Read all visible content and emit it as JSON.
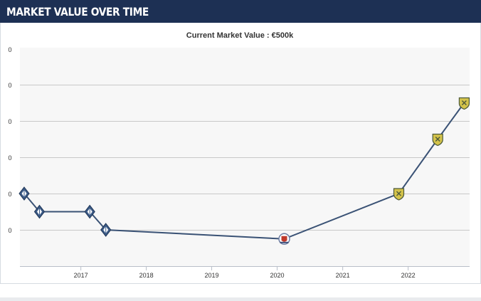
{
  "header": {
    "title": "MARKET VALUE OVER TIME"
  },
  "colors": {
    "header_bg": "#1d3054",
    "plot_bg": "#f7f7f7",
    "grid": "#c8c8c8",
    "line": "#3a5275",
    "club_a": "#3b5a86",
    "club_b": "#c0392b",
    "club_c": "#d4c34a"
  },
  "chart_data": {
    "type": "line",
    "title": "Current Market Value : €500k",
    "xlabel": "",
    "ylabel": "",
    "x_ticks": [
      "2017",
      "2018",
      "2019",
      "2020",
      "2021",
      "2022"
    ],
    "y_tick_labels": [
      "0",
      "0",
      "0",
      "0",
      "0",
      "0"
    ],
    "grid": true,
    "legend": "none",
    "series": [
      {
        "points": [
          {
            "date": "2016-02-20",
            "club_icon": "diamond-crest-icon"
          },
          {
            "date": "2016-05-15",
            "club_icon": "diamond-crest-icon"
          },
          {
            "date": "2017-02-20",
            "club_icon": "diamond-crest-icon"
          },
          {
            "date": "2017-05-20",
            "club_icon": "diamond-crest-icon"
          },
          {
            "date": "2020-02-10",
            "club_icon": "round-crest-icon"
          },
          {
            "date": "2021-11-10",
            "club_icon": "shield-crest-icon"
          },
          {
            "date": "2022-06-15",
            "club_icon": "shield-crest-icon"
          },
          {
            "date": "2022-11-10",
            "club_icon": "shield-crest-icon"
          }
        ],
        "levels": [
          2.5,
          2,
          2,
          1.5,
          1.25,
          2.5,
          4,
          5
        ]
      }
    ]
  }
}
